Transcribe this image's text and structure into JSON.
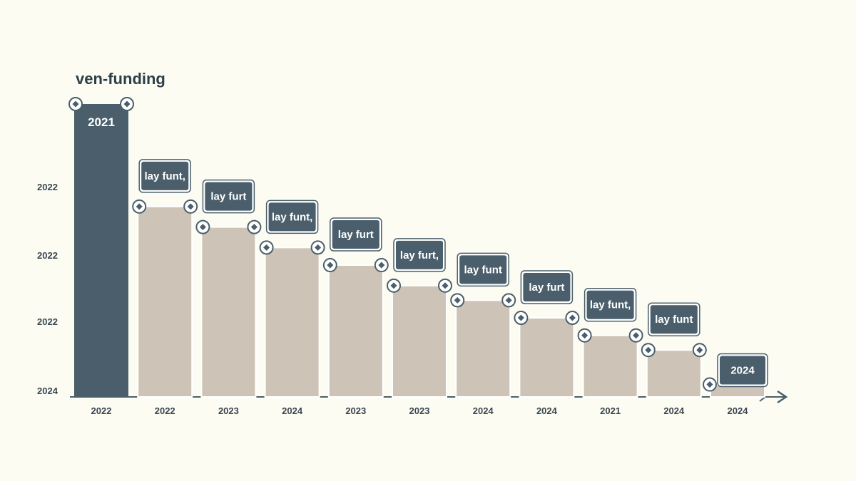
{
  "chart_data": {
    "type": "bar",
    "title": "ven-funding",
    "y_tick_labels": [
      "2022",
      "2022",
      "2022",
      "2024"
    ],
    "categories": [
      "2022",
      "2022",
      "2023",
      "2024",
      "2023",
      "2023",
      "2024",
      "2024",
      "2021",
      "2024",
      "2024"
    ],
    "values": [
      100,
      65,
      58,
      51,
      45,
      38,
      33,
      27,
      21,
      16,
      4
    ],
    "bar_labels": [
      "2021",
      "lay funt,",
      "lay furt",
      "lay funt,",
      "lay furt",
      "lay furt,",
      "lay funt",
      "lay furt",
      "lay funt,",
      "lay funt",
      "2024"
    ],
    "ylim": [
      0,
      100
    ],
    "grid": false,
    "legend": "none",
    "colors": {
      "background": "#fcfcf3",
      "highlight_bar": "#4a5f6b",
      "bar": "#cdc3b6",
      "label_box": "#4a5f6b",
      "text": "#2c3e48"
    }
  }
}
